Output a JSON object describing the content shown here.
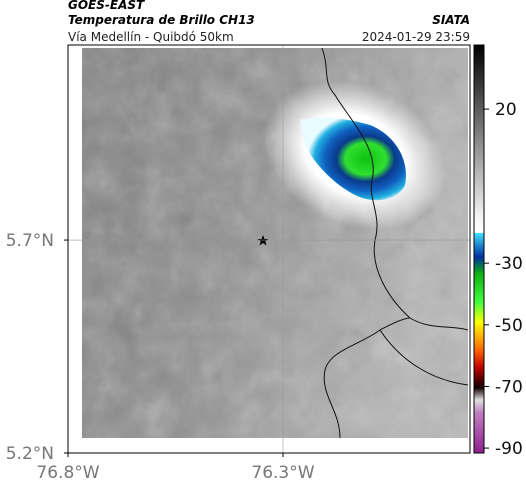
{
  "header": {
    "satellite": "GOES-EAST",
    "product": "Temperatura de Brillo CH13",
    "source": "SIATA",
    "route": "Vía Medellín - Quibdó 50km",
    "datetime": "2024-01-29 23:59"
  },
  "map": {
    "xlim": [
      -76.8,
      -75.865
    ],
    "ylim": [
      5.2,
      6.158
    ],
    "xticks": [
      {
        "value": -76.8,
        "label": "76.8°W"
      },
      {
        "value": -76.3,
        "label": "76.3°W"
      }
    ],
    "yticks": [
      {
        "value": 5.7,
        "label": "5.7°N"
      },
      {
        "value": 5.2,
        "label": "5.2°N"
      }
    ],
    "grid": true
  },
  "colorbar": {
    "lim": [
      -91.6,
      40.8
    ],
    "ticks": [
      20,
      -30,
      -50,
      -70,
      -90
    ]
  }
}
